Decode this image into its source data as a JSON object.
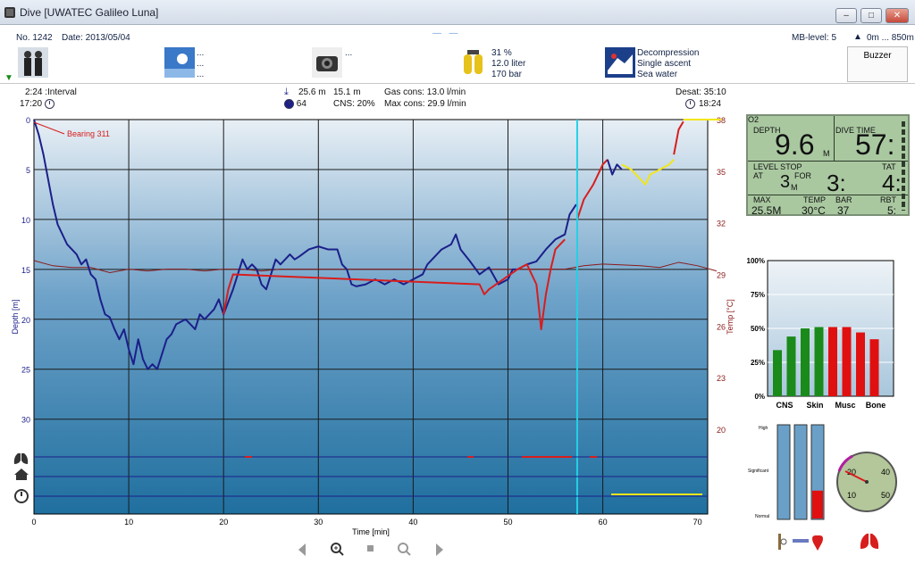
{
  "window": {
    "title": "Dive  [UWATEC Galileo Luna]",
    "buttons": [
      "–",
      "□",
      "✕"
    ]
  },
  "header": {
    "dive_no": "No. 1242",
    "date": "Date: 2013/05/04",
    "mb_level": "MB-level: 5",
    "altitude": "0m ... 850m",
    "buddy_dots": [
      "...",
      "...",
      "..."
    ],
    "camera_dots": "...",
    "tank": [
      "31 %",
      "12.0 liter",
      "170 bar"
    ],
    "deco": [
      "Decompression",
      "Single ascent",
      "Sea water",
      "..."
    ],
    "buzzer": "Buzzer"
  },
  "stats": {
    "interval": "2:24 :Interval",
    "start_time": "17:20",
    "max_depth": "25.6 m",
    "avg_depth": "15.1 m",
    "cns_val": "64",
    "cns": "CNS:  20%",
    "gas_cons": "Gas cons: 13.0 l/min",
    "max_cons": "Max cons: 29.9 l/min",
    "desat": "Desat: 35:10",
    "end_time": "18:24"
  },
  "chart_data": {
    "type": "line",
    "xlabel": "Time [min]",
    "ylabel": "Depth [m]",
    "y2label": "Temp [°C]",
    "xlim": [
      0,
      70
    ],
    "ylim": [
      0,
      39.5
    ],
    "y2lim": [
      38,
      18
    ],
    "xticks": [
      0,
      10,
      20,
      30,
      40,
      50,
      60,
      70
    ],
    "yticks": [
      0,
      5,
      10,
      15,
      20,
      25,
      30
    ],
    "y2ticks": [
      38,
      35,
      32,
      29,
      26,
      23,
      20
    ],
    "annotation": "Bearing 311",
    "cursor_x": 57.3,
    "grid": true,
    "series": [
      {
        "color": "#1b1f8a",
        "points": [
          [
            0,
            0
          ],
          [
            0.5,
            1.5
          ],
          [
            1,
            3.5
          ],
          [
            1.5,
            6
          ],
          [
            2,
            8.5
          ],
          [
            2.5,
            10.5
          ],
          [
            3,
            11.5
          ],
          [
            3.5,
            12.5
          ],
          [
            4,
            13
          ],
          [
            4.5,
            13.5
          ],
          [
            5,
            14.5
          ],
          [
            5.5,
            14
          ],
          [
            6,
            15.5
          ],
          [
            6.5,
            16
          ],
          [
            7,
            18
          ],
          [
            7.5,
            19.5
          ],
          [
            8,
            19.8
          ],
          [
            8.5,
            21
          ],
          [
            9,
            22
          ],
          [
            9.5,
            21
          ],
          [
            10,
            23
          ],
          [
            10.5,
            24.5
          ],
          [
            11,
            22
          ],
          [
            11.5,
            24
          ],
          [
            12,
            25
          ],
          [
            12.5,
            24.5
          ],
          [
            13,
            25
          ],
          [
            13.5,
            23.5
          ],
          [
            14,
            22
          ],
          [
            14.5,
            21.5
          ],
          [
            15,
            20.5
          ],
          [
            16,
            20
          ],
          [
            17,
            21
          ],
          [
            17.5,
            19.5
          ],
          [
            18,
            20
          ],
          [
            19,
            19
          ],
          [
            19.5,
            18
          ],
          [
            20,
            19.5
          ],
          [
            21,
            17
          ],
          [
            21.5,
            15.5
          ],
          [
            22,
            14
          ],
          [
            22.5,
            15
          ],
          [
            23,
            14.5
          ],
          [
            23.5,
            15
          ],
          [
            24,
            16.5
          ],
          [
            24.5,
            17
          ],
          [
            25,
            15.5
          ],
          [
            25.5,
            14
          ],
          [
            26,
            14.5
          ],
          [
            27,
            13.5
          ],
          [
            27.5,
            14
          ],
          [
            28,
            13.7
          ],
          [
            29,
            13
          ],
          [
            30,
            12.7
          ],
          [
            31,
            13
          ],
          [
            32,
            13
          ],
          [
            32.5,
            14.5
          ],
          [
            33,
            15
          ],
          [
            33.5,
            16.5
          ],
          [
            34,
            16.7
          ],
          [
            35,
            16.5
          ],
          [
            36,
            16
          ],
          [
            37,
            16.5
          ],
          [
            38,
            16
          ],
          [
            39,
            16.5
          ],
          [
            40,
            16
          ],
          [
            41,
            15.5
          ],
          [
            41.5,
            14.5
          ],
          [
            42,
            14
          ],
          [
            43,
            13
          ],
          [
            44,
            12.5
          ],
          [
            44.5,
            11.5
          ],
          [
            45,
            13
          ],
          [
            46,
            14.2
          ],
          [
            47,
            15.5
          ],
          [
            48,
            14.8
          ],
          [
            49,
            16.5
          ],
          [
            50,
            16
          ],
          [
            50.5,
            15
          ],
          [
            51,
            15
          ],
          [
            52,
            14.5
          ],
          [
            53,
            14.2
          ],
          [
            54,
            13
          ],
          [
            55,
            12
          ],
          [
            56,
            11.5
          ],
          [
            56.5,
            9.5
          ],
          [
            57.2,
            8.5
          ]
        ]
      },
      {
        "color": "#d81d1d",
        "points": [
          [
            20,
            19.5
          ],
          [
            20.5,
            17
          ],
          [
            21,
            15.5
          ],
          [
            47,
            16.5
          ],
          [
            47.5,
            17.5
          ],
          [
            48,
            17
          ],
          [
            51,
            15
          ],
          [
            52,
            14.5
          ],
          [
            53,
            16.5
          ],
          [
            53.5,
            21
          ],
          [
            54,
            17.5
          ],
          [
            54.5,
            15
          ],
          [
            55,
            13
          ],
          [
            56,
            12
          ]
        ]
      },
      {
        "color": "#d81d1d",
        "points": [
          [
            57.3,
            10
          ],
          [
            58,
            8
          ],
          [
            59,
            6.5
          ],
          [
            59.5,
            5.5
          ],
          [
            60,
            4.5
          ],
          [
            60.5,
            4
          ]
        ]
      },
      {
        "color": "#1b1f8a",
        "points": [
          [
            60.5,
            4
          ],
          [
            61,
            5.5
          ],
          [
            61.5,
            4.5
          ],
          [
            62,
            5
          ]
        ]
      },
      {
        "color": "#f2e618",
        "points": [
          [
            62,
            4.5
          ],
          [
            63,
            5
          ],
          [
            64,
            6
          ],
          [
            64.5,
            6.5
          ],
          [
            65,
            5.5
          ],
          [
            66,
            5
          ],
          [
            67,
            4.5
          ],
          [
            67.5,
            4
          ]
        ]
      },
      {
        "color": "#d81d1d",
        "points": [
          [
            67.5,
            3.5
          ],
          [
            68,
            1
          ],
          [
            68.5,
            0.2
          ]
        ]
      },
      {
        "color": "#f2e618",
        "points": [
          [
            68.5,
            0
          ],
          [
            70,
            0
          ],
          [
            72.5,
            0
          ]
        ]
      }
    ],
    "temp_series": {
      "color": "#8b1a1a",
      "points": [
        [
          0,
          29.8
        ],
        [
          2,
          29.5
        ],
        [
          4,
          29.4
        ],
        [
          6,
          29.4
        ],
        [
          8,
          29.1
        ],
        [
          10,
          29.3
        ],
        [
          12,
          29.2
        ],
        [
          14,
          29.3
        ],
        [
          16,
          29.3
        ],
        [
          18,
          29.2
        ],
        [
          20,
          29.3
        ],
        [
          22,
          29.3
        ],
        [
          24,
          29.2
        ],
        [
          26,
          29.3
        ],
        [
          28,
          29.3
        ],
        [
          30,
          29.3
        ],
        [
          34,
          29.3
        ],
        [
          40,
          29.3
        ],
        [
          44,
          29.3
        ],
        [
          48,
          29.3
        ],
        [
          52,
          29.3
        ],
        [
          56,
          29.3
        ],
        [
          58,
          29.5
        ],
        [
          60,
          29.6
        ],
        [
          64,
          29.5
        ],
        [
          66,
          29.4
        ],
        [
          68,
          29.7
        ],
        [
          70,
          29.5
        ],
        [
          72,
          29.2
        ]
      ]
    }
  },
  "computer": {
    "depth_label": "DEPTH",
    "depth": "9.6",
    "depth_unit": "M",
    "dive_time_label": "DIVE TIME",
    "dive_time": "57:",
    "level_stop_label": "LEVEL STOP",
    "at_label": "AT",
    "for_label": "FOR",
    "stop_depth": "3",
    "stop_unit": "M",
    "stop_time": "3:",
    "tat_label": "TAT",
    "tat": "4:",
    "o2_label": "O2",
    "max_label": "MAX",
    "max": "25.5M",
    "temp_label": "TEMP",
    "temp": "30°C",
    "bar_label": "BAR",
    "bar": "37",
    "rbt_label": "RBT",
    "rbt": "5:"
  },
  "tissue": {
    "yticks": [
      "100%",
      "75%",
      "50%",
      "25%",
      "0%"
    ],
    "labels": [
      "CNS",
      "Skin",
      "Musc",
      "Bone"
    ],
    "values": [
      34,
      44,
      50,
      51,
      51,
      51,
      47,
      42
    ],
    "colors": [
      "#1a8a1a",
      "#1a8a1a",
      "#1a8a1a",
      "#1a8a1a",
      "#e01010",
      "#e01010",
      "#e01010",
      "#e01010"
    ]
  },
  "levels": {
    "labels": [
      "High",
      "Significant",
      "Normal"
    ],
    "values": [
      0,
      0,
      0.3
    ]
  },
  "gauge": {
    "labels": [
      "20",
      "40",
      "10",
      "50"
    ]
  },
  "colors": {
    "depth": "#1b1f8a",
    "warn": "#d81d1d",
    "deco": "#f2e618",
    "cursor": "#25d0e6"
  }
}
